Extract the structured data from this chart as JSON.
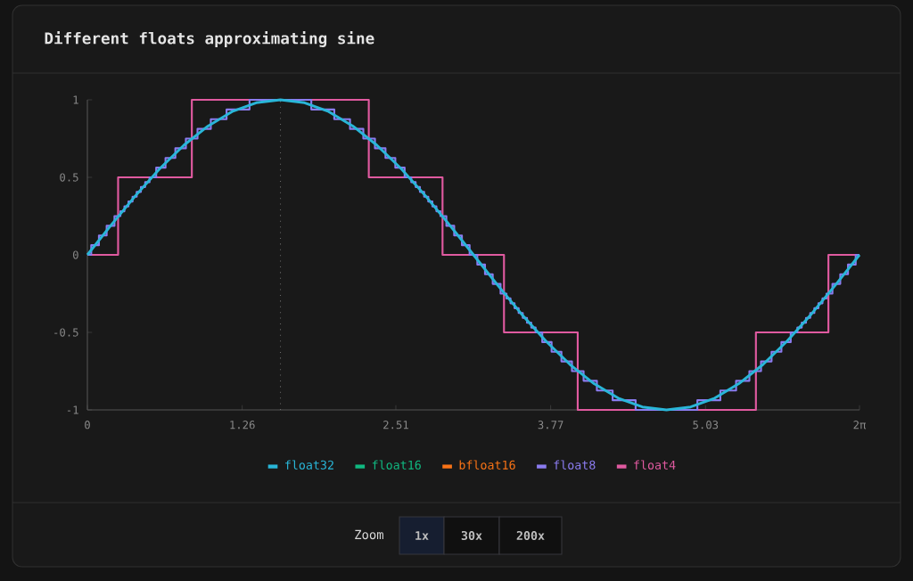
{
  "chart_data": {
    "type": "line",
    "title": "Different floats approximating sine",
    "x": [
      0,
      0.196,
      0.393,
      0.589,
      0.785,
      0.982,
      1.178,
      1.374,
      1.571,
      1.767,
      1.963,
      2.16,
      2.356,
      2.553,
      2.749,
      2.945,
      3.142,
      3.338,
      3.534,
      3.731,
      3.927,
      4.123,
      4.32,
      4.516,
      4.712,
      4.909,
      5.105,
      5.301,
      5.498,
      5.694,
      5.89,
      6.087,
      6.283
    ],
    "series": [
      {
        "name": "float32",
        "color": "#29b6d8",
        "values": [
          0,
          0.195,
          0.383,
          0.556,
          0.707,
          0.831,
          0.924,
          0.981,
          1,
          0.981,
          0.924,
          0.831,
          0.707,
          0.556,
          0.383,
          0.195,
          0,
          -0.195,
          -0.383,
          -0.556,
          -0.707,
          -0.831,
          -0.924,
          -0.981,
          -1,
          -0.981,
          -0.924,
          -0.831,
          -0.707,
          -0.556,
          -0.383,
          -0.195,
          0
        ]
      },
      {
        "name": "float16",
        "color": "#10b981",
        "values": [
          null,
          null,
          null,
          null,
          null,
          null,
          null,
          null,
          null,
          null,
          null,
          null,
          null,
          null,
          null,
          null,
          null,
          null,
          null,
          null,
          null,
          null,
          null,
          null,
          null,
          null,
          null,
          null,
          null,
          null,
          null,
          null,
          null
        ]
      },
      {
        "name": "bfloat16",
        "color": "#f97316",
        "values": [
          null,
          null,
          null,
          null,
          null,
          null,
          null,
          null,
          null,
          null,
          null,
          null,
          null,
          null,
          null,
          null,
          null,
          null,
          null,
          null,
          null,
          null,
          null,
          null,
          null,
          null,
          null,
          null,
          null,
          null,
          null,
          null,
          null
        ]
      },
      {
        "name": "float8",
        "color": "#8b7cf0",
        "type": "step",
        "x": [
          0,
          0.0313,
          0.0939,
          0.1569,
          0.2205,
          0.2688,
          0.3015,
          0.3343,
          0.3676,
          0.4013,
          0.4356,
          0.4704,
          0.5058,
          0.56,
          0.6358,
          0.7158,
          0.8016,
          0.8962,
          1.0045,
          1.1326,
          1.3195,
          1.8221,
          2.009,
          2.1371,
          2.2454,
          2.34,
          2.4258,
          2.5058,
          2.5816,
          2.6358,
          2.6712,
          2.706,
          2.7403,
          2.774,
          2.8073,
          2.8401,
          2.8728,
          2.9211,
          2.9847,
          3.0477,
          3.1103,
          3.1729,
          3.2355,
          3.2985,
          3.3621,
          3.4104,
          3.4431,
          3.4759,
          3.5092,
          3.5429,
          3.5772,
          3.612,
          3.6474,
          3.7016,
          3.7774,
          3.8574,
          3.9432,
          4.0378,
          4.1461,
          4.2742,
          4.4611,
          4.9637,
          5.1506,
          5.2787,
          5.387,
          5.4816,
          5.5674,
          5.6474,
          5.7232,
          5.7774,
          5.8128,
          5.8476,
          5.8819,
          5.9156,
          5.9489,
          5.9817,
          6.0144,
          6.0627,
          6.1263,
          6.1893,
          6.2519,
          6.283
        ],
        "values": [
          0,
          0.0625,
          0.125,
          0.1875,
          0.25,
          0.28125,
          0.3125,
          0.34375,
          0.375,
          0.40625,
          0.4375,
          0.46875,
          0.5,
          0.5625,
          0.625,
          0.6875,
          0.75,
          0.8125,
          0.875,
          0.9375,
          1,
          0.9375,
          0.875,
          0.8125,
          0.75,
          0.6875,
          0.625,
          0.5625,
          0.5,
          0.46875,
          0.4375,
          0.40625,
          0.375,
          0.34375,
          0.3125,
          0.28125,
          0.25,
          0.1875,
          0.125,
          0.0625,
          0,
          -0.0625,
          -0.125,
          -0.1875,
          -0.25,
          -0.28125,
          -0.3125,
          -0.34375,
          -0.375,
          -0.40625,
          -0.4375,
          -0.46875,
          -0.5,
          -0.5625,
          -0.625,
          -0.6875,
          -0.75,
          -0.8125,
          -0.875,
          -0.9375,
          -1,
          -0.9375,
          -0.875,
          -0.8125,
          -0.75,
          -0.6875,
          -0.625,
          -0.5625,
          -0.5,
          -0.46875,
          -0.4375,
          -0.40625,
          -0.375,
          -0.34375,
          -0.3125,
          -0.28125,
          -0.25,
          -0.1875,
          -0.125,
          -0.0625,
          0,
          0
        ]
      },
      {
        "name": "float4",
        "color": "#e05aa0",
        "type": "step",
        "x": [
          0,
          0.25,
          0.85,
          2.29,
          2.89,
          3.39,
          3.99,
          5.44,
          6.03,
          6.283
        ],
        "values": [
          0,
          0.5,
          1,
          0.5,
          0,
          -0.5,
          -1,
          -0.5,
          0,
          0
        ]
      }
    ],
    "xlim": [
      0,
      6.283
    ],
    "xticks": [
      0,
      1.26,
      2.51,
      3.77,
      5.03,
      {
        "value": 6.283,
        "label": "2π"
      }
    ],
    "ylim": [
      -1,
      1
    ],
    "yticks": [
      -1,
      -0.5,
      0,
      0.5,
      1
    ],
    "ref_lines": [
      {
        "axis": "x",
        "value": 1.571,
        "color": "#6a6a6a",
        "line_style": "dotted"
      }
    ],
    "legend": "bottom",
    "line_style": "solid",
    "annotations": [
      "Zoom",
      "1x",
      "30x",
      "200x"
    ]
  }
}
